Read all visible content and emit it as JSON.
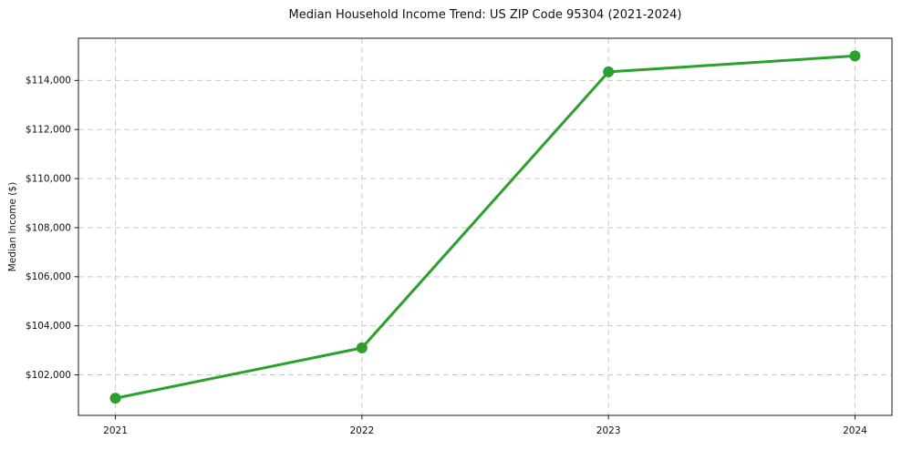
{
  "chart_data": {
    "type": "line",
    "title": "Median Household Income Trend: US ZIP Code 95304 (2021-2024)",
    "xlabel": "",
    "ylabel": "Median Income ($)",
    "categories": [
      2021,
      2022,
      2023,
      2024
    ],
    "x_tick_labels": [
      "2021",
      "2022",
      "2023",
      "2024"
    ],
    "series": [
      {
        "name": "Median Household Income",
        "values": [
          101050,
          103100,
          114350,
          115000
        ]
      }
    ],
    "y_ticks": [
      102000,
      104000,
      106000,
      108000,
      110000,
      112000,
      114000
    ],
    "y_tick_labels": [
      "$102,000",
      "$104,000",
      "$106,000",
      "$108,000",
      "$110,000",
      "$112,000",
      "$114,000"
    ],
    "xlim": [
      2020.85,
      2024.15
    ],
    "ylim": [
      100350,
      115720
    ],
    "grid": true,
    "legend_position": "none",
    "colors": {
      "line": "#2ca02c",
      "marker": "#2ca02c",
      "grid": "#c9c9c9",
      "spine": "#1a1a1a",
      "background": "#ffffff"
    }
  }
}
